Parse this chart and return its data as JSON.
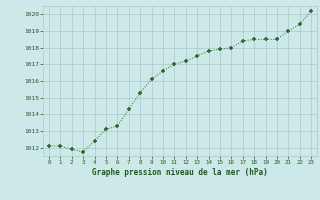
{
  "x": [
    0,
    1,
    2,
    3,
    4,
    5,
    6,
    7,
    8,
    9,
    10,
    11,
    12,
    13,
    14,
    15,
    16,
    17,
    18,
    19,
    20,
    21,
    22,
    23
  ],
  "y": [
    1012.1,
    1012.1,
    1011.9,
    1011.75,
    1012.4,
    1013.1,
    1013.3,
    1014.3,
    1015.3,
    1016.1,
    1016.6,
    1017.0,
    1017.2,
    1017.5,
    1017.8,
    1017.9,
    1018.0,
    1018.4,
    1018.5,
    1018.5,
    1018.5,
    1019.0,
    1019.4,
    1020.2
  ],
  "line_color": "#2d6a2d",
  "marker_color": "#2d6a2d",
  "bg_color": "#cce8e8",
  "grid_color": "#adc8c8",
  "xlabel": "Graphe pression niveau de la mer (hPa)",
  "xlabel_color": "#1a5c1a",
  "tick_color": "#1a5c1a",
  "ylim_min": 1011.5,
  "ylim_max": 1020.5,
  "xlim_min": -0.5,
  "xlim_max": 23.5,
  "yticks": [
    1012,
    1013,
    1014,
    1015,
    1016,
    1017,
    1018,
    1019,
    1020
  ],
  "xticks": [
    0,
    1,
    2,
    3,
    4,
    5,
    6,
    7,
    8,
    9,
    10,
    11,
    12,
    13,
    14,
    15,
    16,
    17,
    18,
    19,
    20,
    21,
    22,
    23
  ]
}
